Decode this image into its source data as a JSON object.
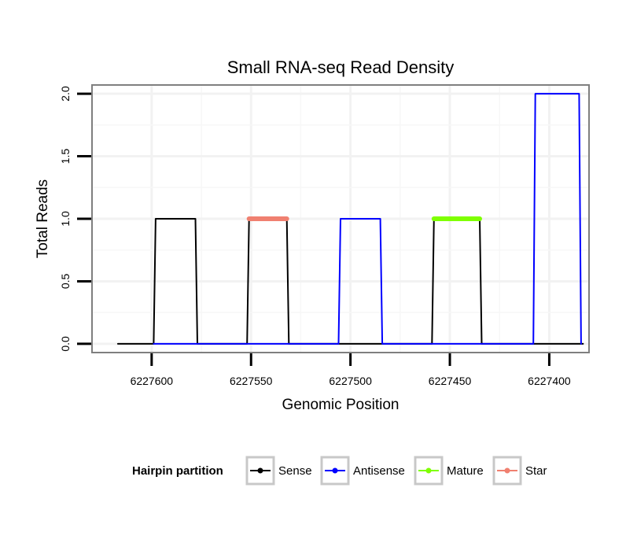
{
  "chart_data": {
    "type": "line",
    "title": "Small RNA-seq Read Density",
    "xlabel": "Genomic Position",
    "ylabel": "Total Reads",
    "x_reversed": true,
    "xlim": [
      6227630,
      6227380
    ],
    "ylim": [
      -0.07,
      2.07
    ],
    "x_ticks": [
      6227600,
      6227550,
      6227500,
      6227450,
      6227400
    ],
    "x_tick_labels": [
      "6227600",
      "6227550",
      "6227500",
      "6227450",
      "6227400"
    ],
    "y_ticks": [
      0,
      0.5,
      1,
      1.5,
      2
    ],
    "y_tick_labels": [
      "0.0",
      "0.5",
      "1.0",
      "1.5",
      "2.0"
    ],
    "grid": true,
    "legend": {
      "title": "Hairpin partition",
      "position": "bottom",
      "entries": [
        {
          "label": "Sense",
          "color": "#000000"
        },
        {
          "label": "Antisense",
          "color": "#0000ff"
        },
        {
          "label": "Mature",
          "color": "#7fff00"
        },
        {
          "label": "Star",
          "color": "#f08070"
        }
      ]
    },
    "series": [
      {
        "name": "Sense",
        "color": "#000000",
        "x": [
          6227617,
          6227599,
          6227598,
          6227578,
          6227577,
          6227552,
          6227551,
          6227532,
          6227531,
          6227506,
          6227505,
          6227485,
          6227484,
          6227459,
          6227458,
          6227435,
          6227434,
          6227383
        ],
        "y": [
          0,
          0,
          1,
          1,
          0,
          0,
          1,
          1,
          0,
          0,
          0,
          0,
          0,
          0,
          1,
          1,
          0,
          0
        ]
      },
      {
        "name": "Antisense",
        "color": "#0000ff",
        "x": [
          6227599,
          6227578,
          6227552,
          6227532,
          6227506,
          6227505,
          6227485,
          6227484,
          6227458,
          6227435,
          6227408,
          6227407,
          6227385,
          6227384
        ],
        "y": [
          0,
          0,
          0,
          0,
          0,
          1,
          1,
          0,
          0,
          0,
          0,
          2,
          2,
          0
        ]
      },
      {
        "name": "Mature",
        "color": "#7fff00",
        "x": [
          6227458,
          6227435
        ],
        "y": [
          1,
          1
        ]
      },
      {
        "name": "Star",
        "color": "#f08070",
        "x": [
          6227551,
          6227532
        ],
        "y": [
          1,
          1
        ]
      }
    ]
  }
}
